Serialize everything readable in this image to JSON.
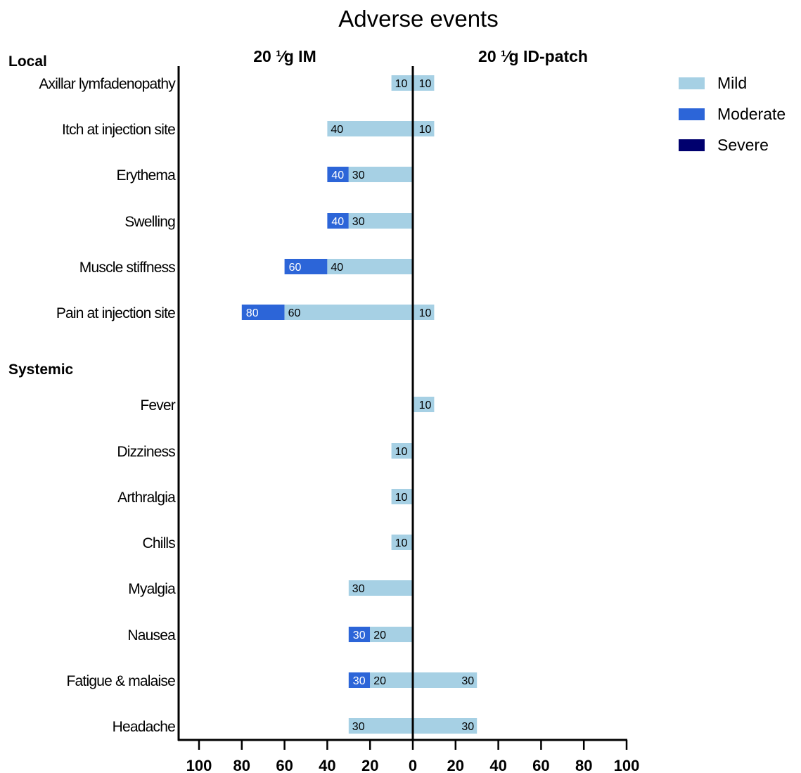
{
  "chart_data": {
    "type": "bar",
    "title": "Adverse events",
    "xlim": [
      -100,
      100
    ],
    "x_ticks": [
      100,
      80,
      60,
      40,
      20,
      0,
      20,
      40,
      60,
      80,
      100
    ],
    "panels": {
      "left": "20 ¹⁄g IM",
      "right": "20 ¹⁄g ID-patch"
    },
    "groups": [
      "Local",
      "Systemic"
    ],
    "legend": {
      "position": "top-right",
      "items": [
        {
          "label": "Mild",
          "color": "#a6d0e4"
        },
        {
          "label": "Moderate",
          "color": "#2c65d8"
        },
        {
          "label": "Severe",
          "color": "#00006e"
        }
      ]
    },
    "categories": [
      {
        "label": "Axillar lymfadenopathy",
        "group": "Local",
        "im_mild": 10,
        "im_moderate": 0,
        "id_mild": 10
      },
      {
        "label": "Itch at injection site",
        "group": "Local",
        "im_mild": 40,
        "im_moderate": 0,
        "id_mild": 10
      },
      {
        "label": "Erythema",
        "group": "Local",
        "im_mild": 30,
        "im_moderate": 40,
        "id_mild": 0
      },
      {
        "label": "Swelling",
        "group": "Local",
        "im_mild": 30,
        "im_moderate": 40,
        "id_mild": 0
      },
      {
        "label": "Muscle stiffness",
        "group": "Local",
        "im_mild": 40,
        "im_moderate": 60,
        "id_mild": 0
      },
      {
        "label": "Pain at injection site",
        "group": "Local",
        "im_mild": 60,
        "im_moderate": 80,
        "id_mild": 10
      },
      {
        "label": "Fever",
        "group": "Systemic",
        "im_mild": 0,
        "im_moderate": 0,
        "id_mild": 10
      },
      {
        "label": "Dizziness",
        "group": "Systemic",
        "im_mild": 10,
        "im_moderate": 0,
        "id_mild": 0
      },
      {
        "label": "Arthralgia",
        "group": "Systemic",
        "im_mild": 10,
        "im_moderate": 0,
        "id_mild": 0
      },
      {
        "label": "Chills",
        "group": "Systemic",
        "im_mild": 10,
        "im_moderate": 0,
        "id_mild": 0
      },
      {
        "label": "Myalgia",
        "group": "Systemic",
        "im_mild": 30,
        "im_moderate": 0,
        "id_mild": 0
      },
      {
        "label": "Nausea",
        "group": "Systemic",
        "im_mild": 20,
        "im_moderate": 30,
        "id_mild": 0
      },
      {
        "label": "Fatigue & malaise",
        "group": "Systemic",
        "im_mild": 20,
        "im_moderate": 30,
        "id_mild": 30
      },
      {
        "label": "Headache",
        "group": "Systemic",
        "im_mild": 30,
        "im_moderate": 0,
        "id_mild": 30
      }
    ]
  }
}
